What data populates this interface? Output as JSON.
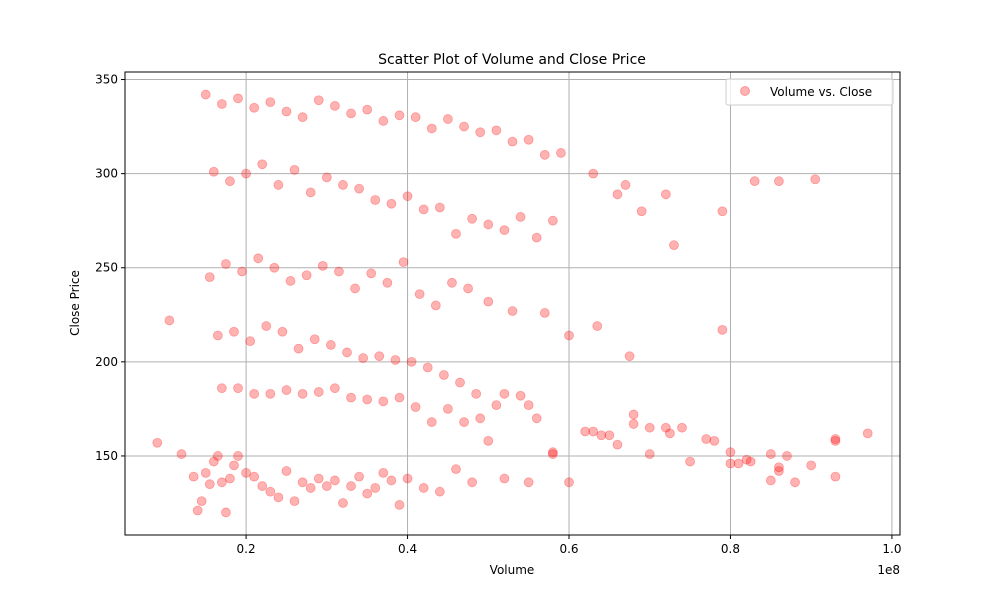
{
  "chart_data": {
    "type": "scatter",
    "title": "Scatter Plot of Volume and Close Price",
    "xlabel": "Volume",
    "ylabel": "Close Price",
    "x_offset_text": "1e8",
    "xlim": [
      0.05,
      1.01
    ],
    "ylim": [
      108,
      354
    ],
    "xticks": [
      0.2,
      0.4,
      0.6,
      0.8,
      1.0
    ],
    "xtick_labels": [
      "0.2",
      "0.4",
      "0.6",
      "0.8",
      "1.0"
    ],
    "yticks": [
      150,
      200,
      250,
      300,
      350
    ],
    "ytick_labels": [
      "150",
      "200",
      "250",
      "300",
      "350"
    ],
    "grid": true,
    "legend_position": "upper right",
    "series": [
      {
        "name": "Volume vs. Close",
        "color": "#ff0000",
        "alpha": 0.3,
        "x": [
          0.09,
          0.105,
          0.12,
          0.135,
          0.14,
          0.145,
          0.15,
          0.155,
          0.16,
          0.165,
          0.17,
          0.175,
          0.18,
          0.185,
          0.19,
          0.2,
          0.21,
          0.22,
          0.23,
          0.24,
          0.25,
          0.26,
          0.27,
          0.28,
          0.29,
          0.3,
          0.31,
          0.32,
          0.33,
          0.34,
          0.35,
          0.36,
          0.37,
          0.38,
          0.39,
          0.4,
          0.42,
          0.44,
          0.46,
          0.48,
          0.5,
          0.52,
          0.55,
          0.58,
          0.6,
          0.62,
          0.64,
          0.66,
          0.68,
          0.7,
          0.72,
          0.75,
          0.78,
          0.8,
          0.82,
          0.85,
          0.86,
          0.88,
          0.9,
          0.93,
          0.97,
          0.15,
          0.17,
          0.19,
          0.21,
          0.23,
          0.25,
          0.27,
          0.29,
          0.31,
          0.33,
          0.35,
          0.37,
          0.39,
          0.41,
          0.43,
          0.45,
          0.47,
          0.49,
          0.51,
          0.53,
          0.55,
          0.57,
          0.59,
          0.63,
          0.67,
          0.72,
          0.79,
          0.83,
          0.16,
          0.18,
          0.2,
          0.22,
          0.24,
          0.26,
          0.28,
          0.3,
          0.32,
          0.34,
          0.36,
          0.38,
          0.4,
          0.42,
          0.44,
          0.46,
          0.48,
          0.5,
          0.52,
          0.54,
          0.56,
          0.58,
          0.66,
          0.69,
          0.73,
          0.86,
          0.905,
          0.155,
          0.175,
          0.195,
          0.215,
          0.235,
          0.255,
          0.275,
          0.295,
          0.315,
          0.335,
          0.355,
          0.375,
          0.395,
          0.415,
          0.435,
          0.455,
          0.475,
          0.5,
          0.53,
          0.57,
          0.6,
          0.635,
          0.675,
          0.79,
          0.165,
          0.185,
          0.205,
          0.225,
          0.245,
          0.265,
          0.285,
          0.305,
          0.325,
          0.345,
          0.365,
          0.385,
          0.405,
          0.425,
          0.445,
          0.465,
          0.485,
          0.51,
          0.54,
          0.56,
          0.63,
          0.7,
          0.725,
          0.77,
          0.81,
          0.825,
          0.86,
          0.87,
          0.93,
          0.17,
          0.19,
          0.21,
          0.23,
          0.25,
          0.27,
          0.29,
          0.31,
          0.33,
          0.35,
          0.37,
          0.39,
          0.41,
          0.43,
          0.45,
          0.47,
          0.49,
          0.52,
          0.55,
          0.58,
          0.65,
          0.68,
          0.74,
          0.8,
          0.85,
          0.93
        ],
        "y": [
          157,
          222,
          151,
          139,
          121,
          126,
          141,
          135,
          147,
          150,
          136,
          120,
          138,
          145,
          150,
          141,
          139,
          134,
          131,
          128,
          142,
          126,
          136,
          133,
          138,
          134,
          137,
          125,
          134,
          139,
          130,
          133,
          141,
          137,
          124,
          138,
          133,
          131,
          143,
          136,
          158,
          138,
          136,
          151,
          136,
          163,
          161,
          156,
          167,
          151,
          165,
          147,
          158,
          146,
          148,
          137,
          142,
          136,
          145,
          158,
          162,
          342,
          337,
          340,
          335,
          338,
          333,
          330,
          339,
          336,
          332,
          334,
          328,
          331,
          330,
          324,
          329,
          325,
          322,
          323,
          317,
          318,
          310,
          311,
          300,
          294,
          289,
          280,
          296,
          301,
          296,
          300,
          305,
          294,
          302,
          290,
          298,
          294,
          292,
          286,
          284,
          288,
          281,
          282,
          268,
          276,
          273,
          270,
          277,
          266,
          275,
          289,
          280,
          262,
          296,
          297,
          245,
          252,
          248,
          255,
          250,
          243,
          246,
          251,
          248,
          239,
          247,
          242,
          253,
          236,
          230,
          242,
          239,
          232,
          227,
          226,
          214,
          219,
          203,
          217,
          214,
          216,
          211,
          219,
          216,
          207,
          212,
          209,
          205,
          202,
          203,
          201,
          200,
          197,
          193,
          189,
          183,
          177,
          182,
          170,
          163,
          165,
          162,
          159,
          146,
          147,
          144,
          150,
          159,
          186,
          186,
          183,
          183,
          185,
          183,
          184,
          186,
          181,
          180,
          179,
          181,
          176,
          168,
          175,
          168,
          170,
          183,
          177,
          152,
          161,
          172,
          165,
          152,
          151,
          139
        ]
      }
    ]
  }
}
